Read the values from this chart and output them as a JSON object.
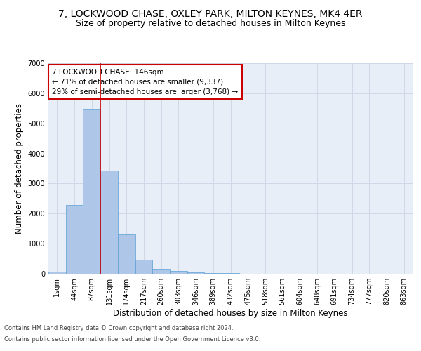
{
  "title_line1": "7, LOCKWOOD CHASE, OXLEY PARK, MILTON KEYNES, MK4 4ER",
  "title_line2": "Size of property relative to detached houses in Milton Keynes",
  "xlabel": "Distribution of detached houses by size in Milton Keynes",
  "ylabel": "Number of detached properties",
  "categories": [
    "1sqm",
    "44sqm",
    "87sqm",
    "131sqm",
    "174sqm",
    "217sqm",
    "260sqm",
    "303sqm",
    "346sqm",
    "389sqm",
    "432sqm",
    "475sqm",
    "518sqm",
    "561sqm",
    "604sqm",
    "648sqm",
    "691sqm",
    "734sqm",
    "777sqm",
    "820sqm",
    "863sqm"
  ],
  "bar_heights": [
    80,
    2280,
    5480,
    3430,
    1310,
    460,
    160,
    90,
    55,
    35,
    20,
    10,
    5,
    3,
    2,
    1,
    1,
    0,
    0,
    0,
    0
  ],
  "bar_color": "#aec6e8",
  "bar_edge_color": "#5a9fd4",
  "annotation_line1": "7 LOCKWOOD CHASE: 146sqm",
  "annotation_line2": "← 71% of detached houses are smaller (9,337)",
  "annotation_line3": "29% of semi-detached houses are larger (3,768) →",
  "annotation_box_color": "#ffffff",
  "annotation_box_edge_color": "#cc0000",
  "vline_color": "#cc0000",
  "ylim": [
    0,
    7000
  ],
  "yticks": [
    0,
    1000,
    2000,
    3000,
    4000,
    5000,
    6000,
    7000
  ],
  "grid_color": "#d0d8e8",
  "bg_color": "#e8eef8",
  "footer_line1": "Contains HM Land Registry data © Crown copyright and database right 2024.",
  "footer_line2": "Contains public sector information licensed under the Open Government Licence v3.0.",
  "title_fontsize": 10,
  "subtitle_fontsize": 9,
  "axis_label_fontsize": 8.5,
  "tick_fontsize": 7,
  "annotation_fontsize": 7.5
}
